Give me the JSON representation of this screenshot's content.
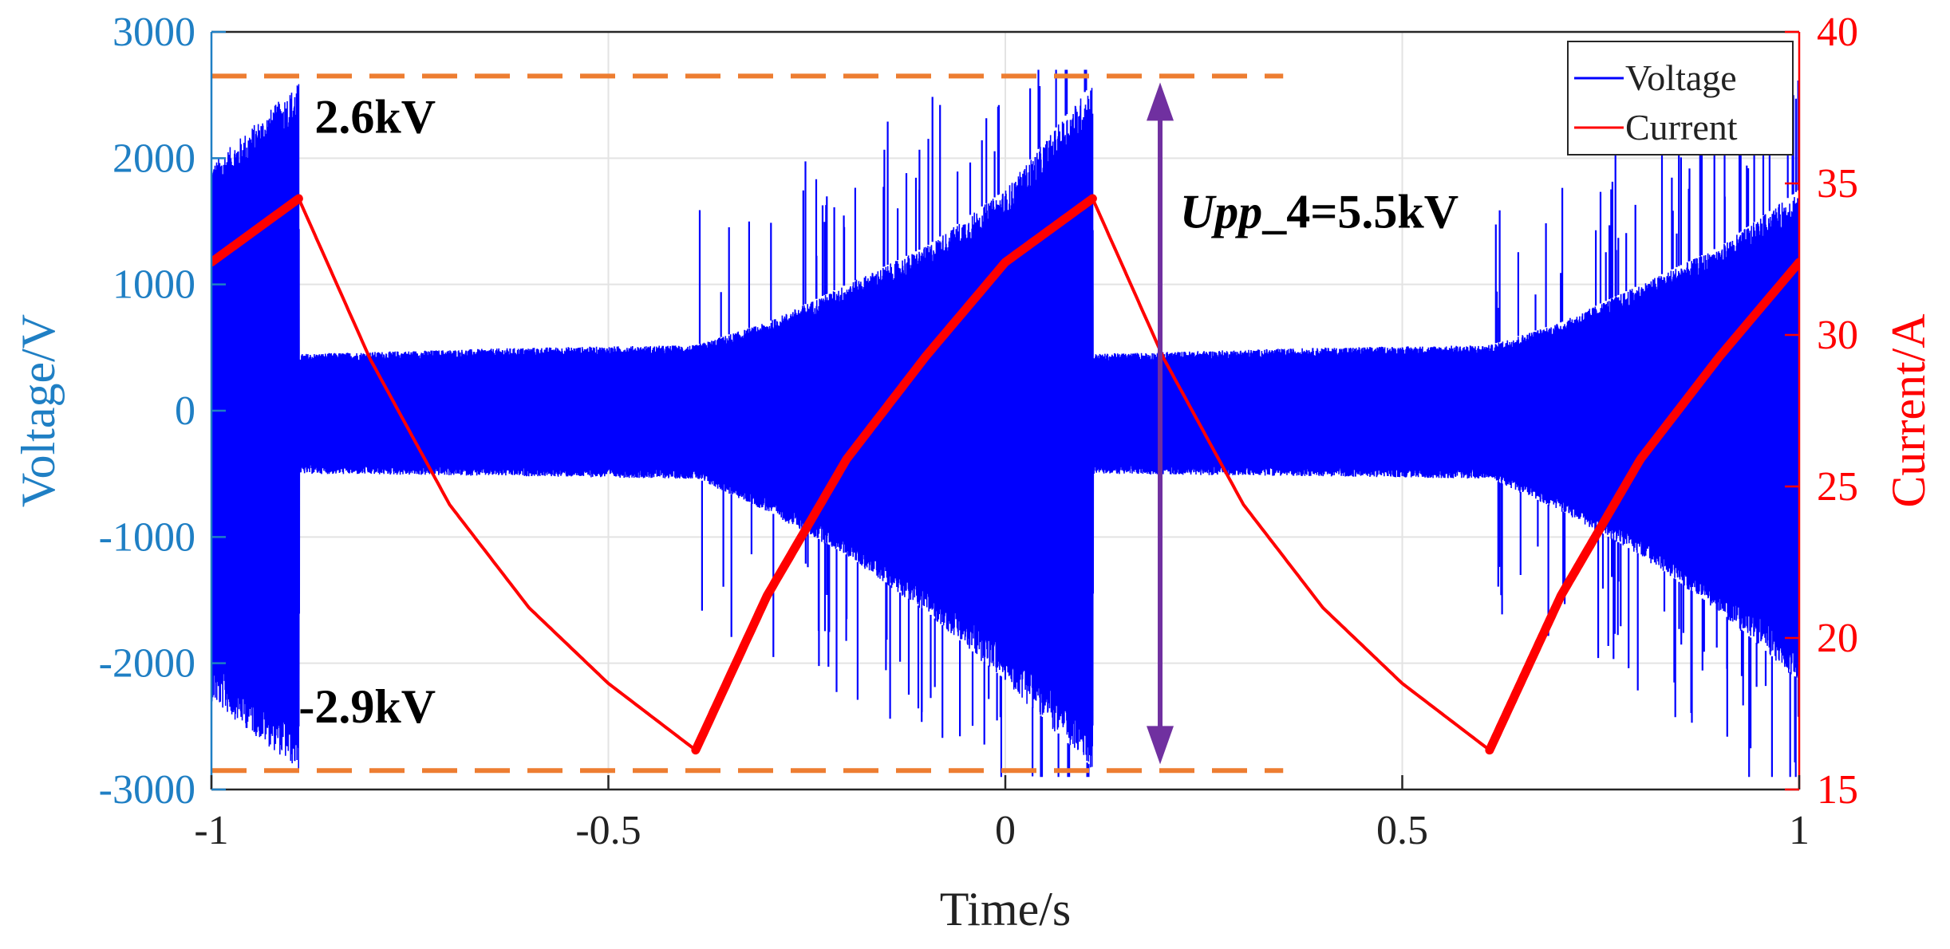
{
  "chart_data": {
    "type": "line",
    "x": {
      "label": "Time/s",
      "range": [
        -1,
        1
      ],
      "ticks": [
        -1,
        -0.5,
        0,
        0.5,
        1
      ],
      "tick_labels": [
        "-1",
        "-0.5",
        "0",
        "0.5",
        "1"
      ]
    },
    "y_left": {
      "label": "Voltage/V",
      "range": [
        -3000,
        3000
      ],
      "ticks": [
        -3000,
        -2000,
        -1000,
        0,
        1000,
        2000,
        3000
      ],
      "tick_labels": [
        "-3000",
        "-2000",
        "-1000",
        "0",
        "1000",
        "2000",
        "3000"
      ],
      "color": "#1f7fc4"
    },
    "y_right": {
      "label": "Current/A",
      "range": [
        15,
        40
      ],
      "ticks": [
        15,
        20,
        25,
        30,
        35,
        40
      ],
      "tick_labels": [
        "15",
        "20",
        "25",
        "30",
        "35",
        "40"
      ],
      "color": "#ff0000"
    },
    "grid": true,
    "legend": {
      "placement": "top-right",
      "entries": [
        {
          "name": "Voltage",
          "color": "#0000ff"
        },
        {
          "name": "Current",
          "color": "#ff0000"
        }
      ]
    },
    "series": [
      {
        "name": "Voltage",
        "axis": "left",
        "color": "#0000ff",
        "note": "high-frequency oscillation; amplitude envelope (V) vs time",
        "envelope_upper": {
          "x": [
            -1,
            -0.89,
            -0.889,
            -0.6,
            -0.39,
            -0.3,
            -0.2,
            -0.1,
            0.0,
            0.11,
            0.111,
            0.4,
            0.61,
            0.7,
            0.8,
            0.9,
            1.0
          ],
          "y": [
            1950,
            2600,
            450,
            500,
            520,
            700,
            1000,
            1300,
            1750,
            2600,
            450,
            500,
            520,
            700,
            1000,
            1300,
            1750
          ]
        },
        "envelope_lower": {
          "x": [
            -1,
            -0.89,
            -0.889,
            -0.6,
            -0.39,
            -0.3,
            -0.2,
            -0.1,
            0.0,
            0.11,
            0.111,
            0.4,
            0.61,
            0.7,
            0.8,
            0.9,
            1.0
          ],
          "y": [
            -2300,
            -2850,
            -500,
            -520,
            -540,
            -800,
            -1150,
            -1600,
            -2150,
            -2850,
            -500,
            -520,
            -540,
            -800,
            -1150,
            -1600,
            -2150
          ]
        }
      },
      {
        "name": "Current",
        "axis": "right",
        "color": "#ff0000",
        "x": [
          -1,
          -0.89,
          -0.8,
          -0.7,
          -0.6,
          -0.5,
          -0.39,
          -0.3,
          -0.2,
          -0.1,
          0.0,
          0.11,
          0.2,
          0.3,
          0.4,
          0.5,
          0.61,
          0.7,
          0.8,
          0.9,
          1.0
        ],
        "y": [
          32.4,
          34.5,
          29.2,
          24.4,
          21.0,
          18.5,
          16.3,
          21.4,
          25.9,
          29.3,
          32.4,
          34.5,
          29.2,
          24.4,
          21.0,
          18.5,
          16.3,
          21.4,
          25.9,
          29.3,
          32.4
        ]
      }
    ],
    "annotations": [
      {
        "text": "2.6kV",
        "x": -0.87,
        "y": 2200
      },
      {
        "text": "-2.9kV",
        "x": -0.87,
        "y": -2470
      },
      {
        "text_italic": "Upp",
        "text_rest": "_4=5.5kV",
        "x": 0.22,
        "y": 1450
      }
    ],
    "reference_lines": [
      {
        "name": "upper-peak",
        "value": 2650,
        "x_range": [
          -1,
          0.35
        ],
        "color": "#ed7d31"
      },
      {
        "name": "lower-peak",
        "value": -2850,
        "x_range": [
          -1,
          0.35
        ],
        "color": "#ed7d31"
      }
    ],
    "span_arrow": {
      "x": 0.195,
      "from": 2600,
      "to": -2800,
      "color": "#7030a0"
    }
  }
}
